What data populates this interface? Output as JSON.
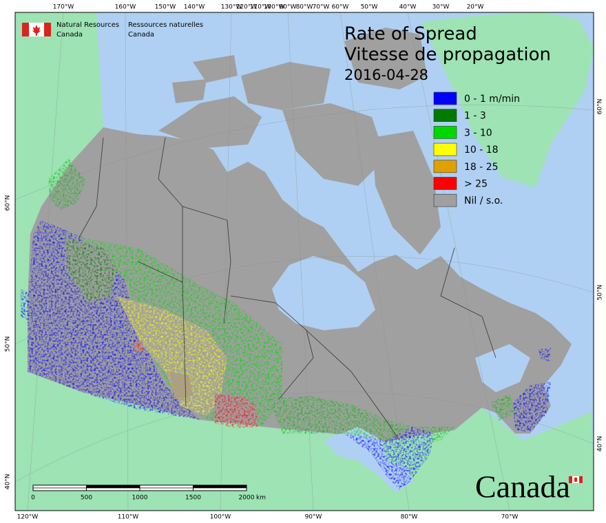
{
  "header": {
    "agency_en": [
      "Natural Resources",
      "Canada"
    ],
    "agency_fr": [
      "Ressources naturelles",
      "Canada"
    ]
  },
  "title": {
    "en": "Rate of Spread",
    "fr": "Vitesse de propagation",
    "date": "2016-04-28"
  },
  "legend": [
    {
      "label": "0 - 1 m/min",
      "color": "#0000ff"
    },
    {
      "label": "1 - 3",
      "color": "#007a00"
    },
    {
      "label": "3 - 10",
      "color": "#00d800"
    },
    {
      "label": "10 - 18",
      "color": "#ffff00"
    },
    {
      "label": "18 - 25",
      "color": "#e0a000"
    },
    {
      "label": "> 25",
      "color": "#ff0000"
    },
    {
      "label": "Nil / s.o.",
      "color": "#a0a0a0"
    }
  ],
  "graticule": {
    "top": [
      "170°W",
      "160°W",
      "150°W",
      "140°W",
      "130°W",
      "120°W",
      "110°W",
      "100°W",
      "90°W",
      "80°W",
      "70°W",
      "60°W",
      "50°W",
      "40°W",
      "30°W",
      "20°W"
    ],
    "bottom": [
      "120°W",
      "110°W",
      "100°W",
      "90°W",
      "80°W",
      "70°W"
    ],
    "left": [
      "60°N",
      "50°N",
      "40°N"
    ],
    "right": [
      "60°N",
      "50°N",
      "40°N"
    ]
  },
  "scale_bar": {
    "ticks": [
      0,
      500,
      1000,
      1500,
      2000
    ],
    "unit": "km"
  },
  "wordmark": "Canada"
}
